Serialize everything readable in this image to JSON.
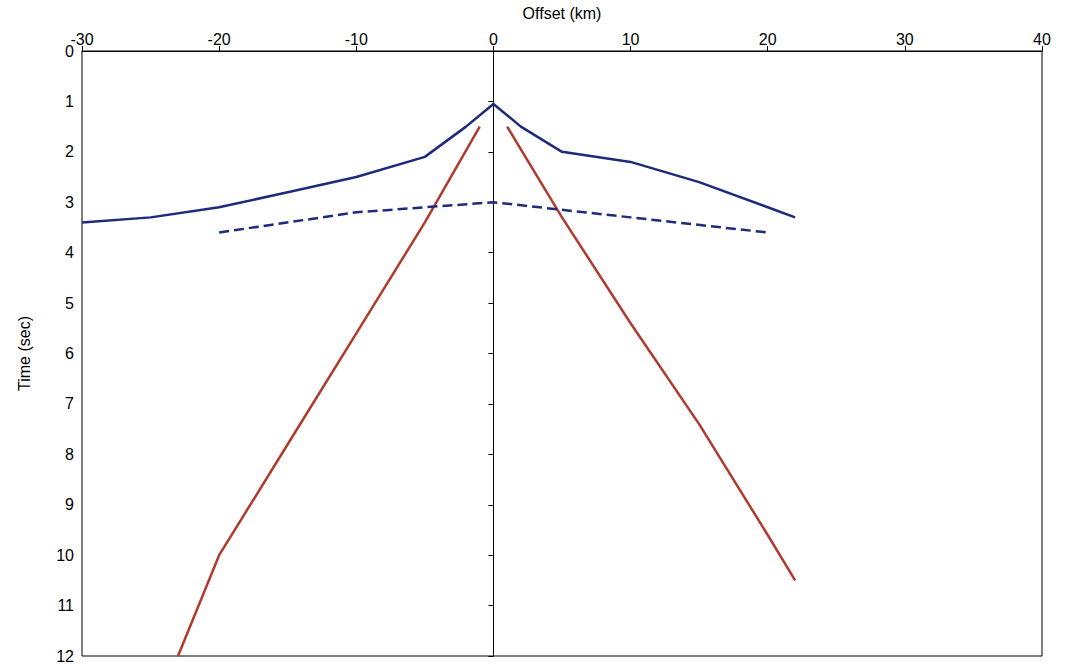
{
  "chart_data": {
    "type": "line",
    "x_label": "Offset (km)",
    "y_label": "Time (sec)",
    "xlim": [
      -30,
      40
    ],
    "xticks": [
      -30,
      -20,
      -10,
      0,
      10,
      20,
      30,
      40
    ],
    "ylim": [
      0,
      12
    ],
    "yticks": [
      0,
      1,
      2,
      3,
      4,
      5,
      6,
      7,
      8,
      9,
      10,
      11,
      12
    ],
    "grid": false,
    "series": [
      {
        "x": [
          -30,
          -25,
          -20,
          -15,
          -10,
          -5,
          -2,
          0,
          2,
          5,
          10,
          15,
          20,
          22
        ],
        "values": [
          3.4,
          3.3,
          3.1,
          2.8,
          2.5,
          2.1,
          1.5,
          1.05,
          1.5,
          2.0,
          2.2,
          2.6,
          3.1,
          3.3
        ],
        "color": "#1f2a7a",
        "line_style": "solid"
      },
      {
        "x": [
          -1,
          -5,
          -10,
          -15,
          -20,
          -23
        ],
        "values": [
          1.5,
          3.4,
          5.6,
          7.8,
          10.0,
          12.0
        ],
        "color": "#b03a2e",
        "line_style": "solid"
      },
      {
        "x": [
          1,
          5,
          10,
          15,
          20,
          22
        ],
        "values": [
          1.5,
          3.3,
          5.4,
          7.4,
          9.6,
          10.5
        ],
        "color": "#b03a2e",
        "line_style": "solid"
      },
      {
        "x": [
          -20,
          -10,
          0,
          10,
          20
        ],
        "values": [
          3.6,
          3.2,
          3.0,
          3.3,
          3.6
        ],
        "color": "#1f2a7a",
        "line_style": "dashed"
      }
    ]
  }
}
